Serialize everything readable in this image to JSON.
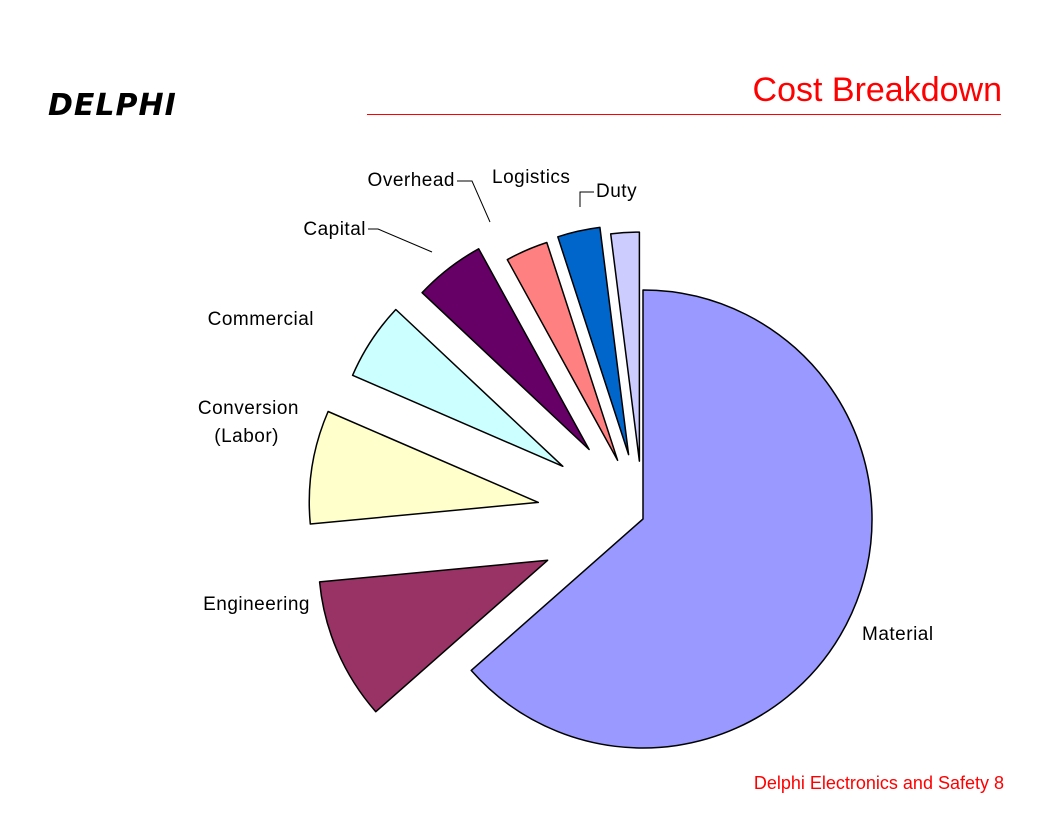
{
  "header": {
    "logo_text": "DELPHI",
    "title": "Cost Breakdown",
    "accent_color": "#ff0000"
  },
  "chart_data": {
    "type": "pie",
    "title": "",
    "slices": [
      {
        "label": "Material",
        "value": 63.5,
        "color": "#9999ff"
      },
      {
        "label": "Engineering",
        "value": 10,
        "color": "#993366"
      },
      {
        "label": "Conversion (Labor)",
        "label_lines": [
          "Conversion",
          "(Labor)"
        ],
        "value": 8,
        "color": "#ffffcc"
      },
      {
        "label": "Commercial",
        "value": 5.5,
        "color": "#ccffff"
      },
      {
        "label": "Capital",
        "value": 5,
        "color": "#660066"
      },
      {
        "label": "Overhead",
        "value": 3,
        "color": "#ff8080"
      },
      {
        "label": "Logistics",
        "value": 3,
        "color": "#0066cc"
      },
      {
        "label": "Duty",
        "value": 2,
        "color": "#ccccff"
      }
    ],
    "exploded": true,
    "legend": "none"
  },
  "footer": {
    "text": "Delphi Electronics and Safety 8"
  }
}
